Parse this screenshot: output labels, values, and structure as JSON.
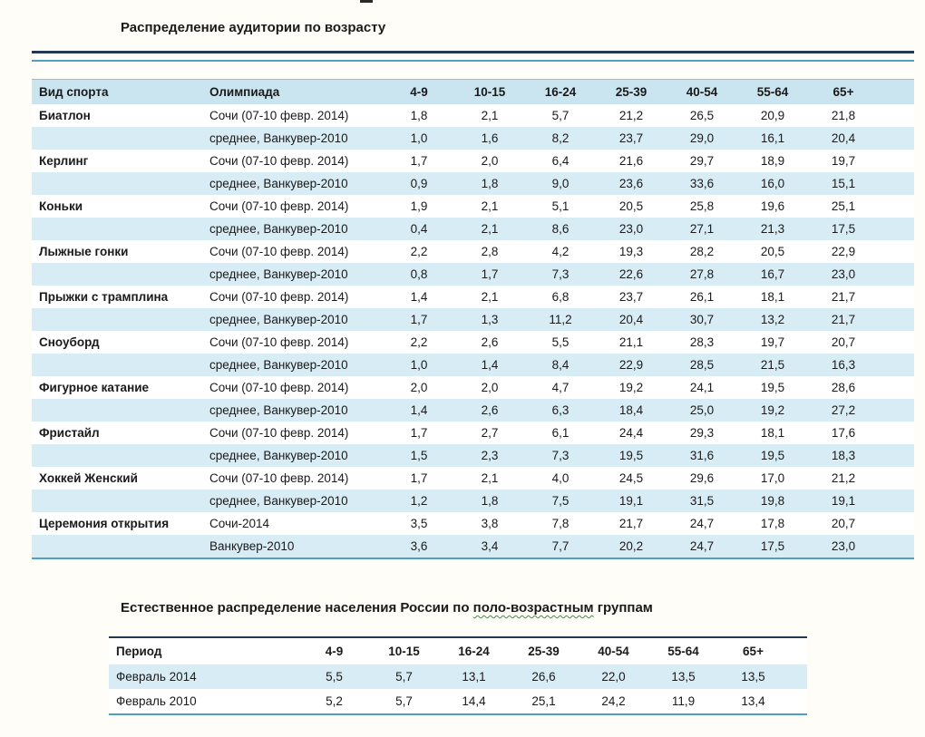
{
  "colors": {
    "header_fill": "#cbe5f0",
    "band_fill": "#d8ecf5",
    "teal_border": "#4f9fc1",
    "navy_border": "#23394f",
    "spellcheck_green": "#3f9142"
  },
  "table1": {
    "title": "Распределение аудитории по возрасту",
    "columns": [
      "Вид спорта",
      "Олимпиада",
      "4-9",
      "10-15",
      "16-24",
      "25-39",
      "40-54",
      "55-64",
      "65+"
    ],
    "rows": [
      {
        "sport": "Биатлон",
        "olympiad": "Сочи (07-10 февр. 2014)",
        "values": [
          "1,8",
          "2,1",
          "5,7",
          "21,2",
          "26,5",
          "20,9",
          "21,8"
        ],
        "shaded": false
      },
      {
        "sport": "",
        "olympiad": "среднее, Ванкувер-2010",
        "values": [
          "1,0",
          "1,6",
          "8,2",
          "23,7",
          "29,0",
          "16,1",
          "20,4"
        ],
        "shaded": true
      },
      {
        "sport": "Керлинг",
        "olympiad": "Сочи (07-10 февр. 2014)",
        "values": [
          "1,7",
          "2,0",
          "6,4",
          "21,6",
          "29,7",
          "18,9",
          "19,7"
        ],
        "shaded": false
      },
      {
        "sport": "",
        "olympiad": "среднее, Ванкувер-2010",
        "values": [
          "0,9",
          "1,8",
          "9,0",
          "23,6",
          "33,6",
          "16,0",
          "15,1"
        ],
        "shaded": true
      },
      {
        "sport": "Коньки",
        "olympiad": "Сочи (07-10 февр. 2014)",
        "values": [
          "1,9",
          "2,1",
          "5,1",
          "20,5",
          "25,8",
          "19,6",
          "25,1"
        ],
        "shaded": false
      },
      {
        "sport": "",
        "olympiad": "среднее, Ванкувер-2010",
        "values": [
          "0,4",
          "2,1",
          "8,6",
          "23,0",
          "27,1",
          "21,3",
          "17,5"
        ],
        "shaded": true
      },
      {
        "sport": "Лыжные гонки",
        "olympiad": "Сочи (07-10 февр. 2014)",
        "values": [
          "2,2",
          "2,8",
          "4,2",
          "19,3",
          "28,2",
          "20,5",
          "22,9"
        ],
        "shaded": false
      },
      {
        "sport": "",
        "olympiad": "среднее, Ванкувер-2010",
        "values": [
          "0,8",
          "1,7",
          "7,3",
          "22,6",
          "27,8",
          "16,7",
          "23,0"
        ],
        "shaded": true
      },
      {
        "sport": "Прыжки с трамплина",
        "olympiad": "Сочи (07-10 февр. 2014)",
        "values": [
          "1,4",
          "2,1",
          "6,8",
          "23,7",
          "26,1",
          "18,1",
          "21,7"
        ],
        "shaded": false
      },
      {
        "sport": "",
        "olympiad": "среднее, Ванкувер-2010",
        "values": [
          "1,7",
          "1,3",
          "11,2",
          "20,4",
          "30,7",
          "13,2",
          "21,7"
        ],
        "shaded": true
      },
      {
        "sport": "Сноуборд",
        "olympiad": "Сочи (07-10 февр. 2014)",
        "values": [
          "2,2",
          "2,6",
          "5,5",
          "21,1",
          "28,3",
          "19,7",
          "20,7"
        ],
        "shaded": false
      },
      {
        "sport": "",
        "olympiad": "среднее, Ванкувер-2010",
        "values": [
          "1,0",
          "1,4",
          "8,4",
          "22,9",
          "28,5",
          "21,5",
          "16,3"
        ],
        "shaded": true
      },
      {
        "sport": "Фигурное катание",
        "olympiad": "Сочи (07-10 февр. 2014)",
        "values": [
          "2,0",
          "2,0",
          "4,7",
          "19,2",
          "24,1",
          "19,5",
          "28,6"
        ],
        "shaded": false
      },
      {
        "sport": "",
        "olympiad": "среднее, Ванкувер-2010",
        "values": [
          "1,4",
          "2,6",
          "6,3",
          "18,4",
          "25,0",
          "19,2",
          "27,2"
        ],
        "shaded": true
      },
      {
        "sport": "Фристайл",
        "olympiad": "Сочи (07-10 февр. 2014)",
        "values": [
          "1,7",
          "2,7",
          "6,1",
          "24,4",
          "29,3",
          "18,1",
          "17,6"
        ],
        "shaded": false
      },
      {
        "sport": "",
        "olympiad": "среднее, Ванкувер-2010",
        "values": [
          "1,5",
          "2,3",
          "7,3",
          "19,5",
          "31,6",
          "19,5",
          "18,3"
        ],
        "shaded": true
      },
      {
        "sport": "Хоккей Женский",
        "olympiad": "Сочи (07-10 февр. 2014)",
        "values": [
          "1,7",
          "2,1",
          "4,0",
          "24,5",
          "29,6",
          "17,0",
          "21,2"
        ],
        "shaded": false
      },
      {
        "sport": "",
        "olympiad": "среднее, Ванкувер-2010",
        "values": [
          "1,2",
          "1,8",
          "7,5",
          "19,1",
          "31,5",
          "19,8",
          "19,1"
        ],
        "shaded": true
      },
      {
        "sport": "Церемония открытия",
        "olympiad": "Сочи-2014",
        "values": [
          "3,5",
          "3,8",
          "7,8",
          "21,7",
          "24,7",
          "17,8",
          "20,7"
        ],
        "shaded": false
      },
      {
        "sport": "",
        "olympiad": "Ванкувер-2010",
        "values": [
          "3,6",
          "3,4",
          "7,7",
          "20,2",
          "24,7",
          "17,5",
          "23,0"
        ],
        "shaded": true
      }
    ]
  },
  "table2": {
    "title": {
      "before": "Естественное распределение населения России по ",
      "underlined": "поло-возрастным",
      "after": " группам"
    },
    "columns": [
      "Период",
      "4-9",
      "10-15",
      "16-24",
      "25-39",
      "40-54",
      "55-64",
      "65+"
    ],
    "rows": [
      {
        "period": "Февраль 2014",
        "values": [
          "5,5",
          "5,7",
          "13,1",
          "26,6",
          "22,0",
          "13,5",
          "13,5"
        ],
        "shaded": true
      },
      {
        "period": "Февраль 2010",
        "values": [
          "5,2",
          "5,7",
          "14,4",
          "25,1",
          "24,2",
          "11,9",
          "13,4"
        ],
        "shaded": false
      }
    ]
  }
}
